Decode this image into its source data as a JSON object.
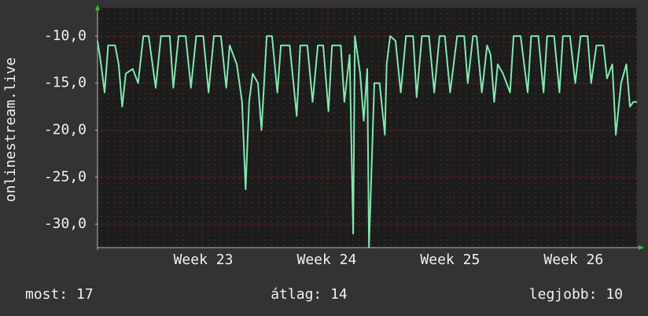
{
  "chart_data": {
    "type": "line",
    "y_label": "onlinestream.live",
    "x": [
      0,
      0.2,
      0.4,
      0.6,
      1.0,
      1.2,
      1.4,
      1.6,
      2.0,
      2.3,
      2.6,
      2.9,
      3.3,
      3.6,
      4.1,
      4.3,
      4.6,
      5.0,
      5.3,
      5.6,
      6.0,
      6.3,
      6.6,
      7.0,
      7.3,
      7.5,
      7.9,
      8.2,
      8.4,
      8.6,
      8.8,
      9.1,
      9.3,
      9.6,
      9.9,
      10.2,
      10.4,
      10.9,
      11.3,
      11.5,
      11.9,
      12.2,
      12.5,
      12.8,
      13.1,
      13.3,
      13.8,
      14.0,
      14.3,
      14.5,
      14.6,
      14.9,
      15.1,
      15.3,
      15.4,
      15.7,
      16.0,
      16.3,
      16.4,
      16.6,
      16.9,
      17.2,
      17.5,
      17.9,
      18.1,
      18.4,
      18.8,
      19.1,
      19.4,
      19.7,
      20.0,
      20.4,
      20.8,
      21.0,
      21.3,
      21.5,
      21.8,
      22.1,
      22.3,
      22.5,
      22.7,
      23.0,
      23.4,
      23.6,
      24.0,
      24.4,
      24.6,
      25.0,
      25.3,
      25.5,
      25.9,
      26.2,
      26.4,
      26.8,
      27.1,
      27.4,
      27.8,
      28.0,
      28.3,
      28.7,
      28.9,
      29.2,
      29.4,
      29.7,
      30.0,
      30.2,
      30.4,
      30.6
    ],
    "series": [
      {
        "name": "onlinestream.live",
        "color": "#7fe8b0",
        "values": [
          -10.5,
          -13,
          -16,
          -11,
          -11,
          -13,
          -17.5,
          -14,
          -13.5,
          -15,
          -10,
          -10,
          -15.5,
          -10,
          -10,
          -15.5,
          -10,
          -10,
          -15.5,
          -10,
          -10,
          -16,
          -10,
          -10,
          -15.5,
          -11,
          -13,
          -17,
          -26.3,
          -17,
          -14,
          -15,
          -20,
          -10,
          -10,
          -16,
          -11,
          -11,
          -18.5,
          -11,
          -11,
          -17,
          -11,
          -11,
          -18,
          -11,
          -11,
          -17,
          -12,
          -31,
          -10,
          -14,
          -19,
          -13.5,
          -32.5,
          -15,
          -15,
          -20.5,
          -13,
          -10,
          -10.5,
          -16,
          -10,
          -10,
          -16.5,
          -10,
          -10,
          -16,
          -10,
          -10,
          -16,
          -10,
          -10,
          -15,
          -10,
          -10,
          -16,
          -11,
          -12,
          -17,
          -13,
          -14,
          -16,
          -10,
          -10,
          -16,
          -10,
          -10,
          -16,
          -10,
          -10,
          -16,
          -10,
          -10,
          -15,
          -10,
          -10,
          -15,
          -11,
          -11,
          -14.5,
          -13,
          -20.5,
          -15,
          -13,
          -17.5,
          -17,
          -17
        ]
      }
    ],
    "xlim": [
      0,
      30.6
    ],
    "xticks": [
      {
        "value": 6,
        "label": "Week 23"
      },
      {
        "value": 13,
        "label": "Week 24"
      },
      {
        "value": 20,
        "label": "Week 25"
      },
      {
        "value": 27,
        "label": "Week 26"
      }
    ],
    "ylim": [
      -32.5,
      -7
    ],
    "yticks": [
      {
        "value": -30,
        "label": "-30,0"
      },
      {
        "value": -25,
        "label": "-25,0"
      },
      {
        "value": -20,
        "label": "-20,0"
      },
      {
        "value": -15,
        "label": "-15,0"
      },
      {
        "value": -10,
        "label": "-10,0"
      }
    ],
    "grid": true,
    "footer": [
      "most: 17",
      "átlag: 14",
      "legjobb: 10"
    ]
  }
}
